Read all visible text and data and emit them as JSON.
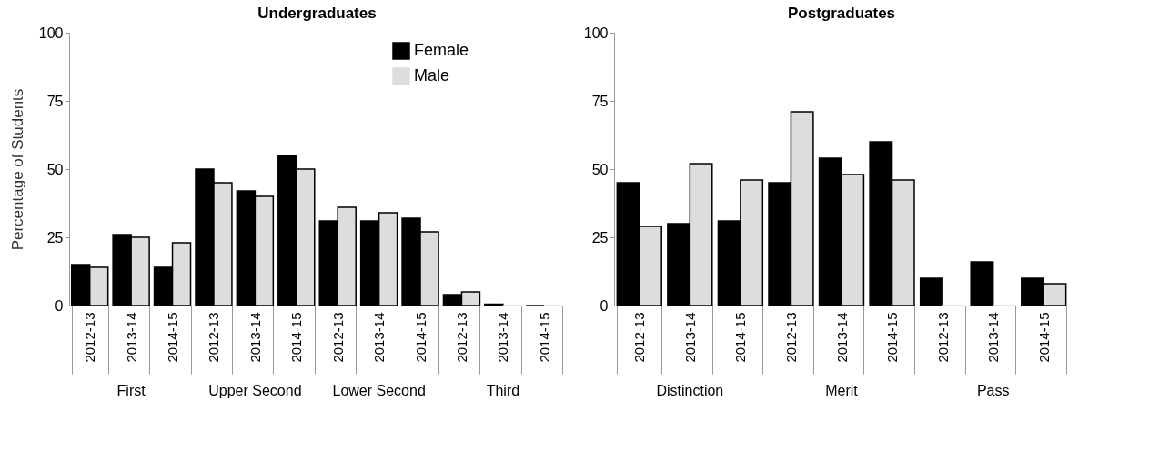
{
  "chart_data": [
    {
      "type": "bar",
      "title": "Undergraduates",
      "ylabel": "Percentage of Students",
      "categories": [
        "2012-13",
        "2013-14",
        "2014-15",
        "2012-13",
        "2013-14",
        "2014-15",
        "2012-13",
        "2013-14",
        "2014-15",
        "2012-13",
        "2013-14",
        "2014-15"
      ],
      "annotations": [
        "First",
        "Upper Second",
        "Lower Second",
        "Third"
      ],
      "series": [
        {
          "name": "Female",
          "color": "#000000",
          "values": [
            15,
            26,
            14,
            50,
            42,
            55,
            31,
            31,
            32,
            4,
            0.5,
            0
          ]
        },
        {
          "name": "Male",
          "color": "#dddddd",
          "values": [
            14,
            25,
            23,
            45,
            40,
            50,
            36,
            34,
            27,
            5,
            0,
            0
          ]
        }
      ],
      "ylim": [
        0,
        100
      ],
      "yticks": [
        0,
        25,
        50,
        75,
        100
      ],
      "grid": false,
      "legend": "top right"
    },
    {
      "type": "bar",
      "title": "Postgraduates",
      "categories": [
        "2012-13",
        "2013-14",
        "2014-15",
        "2012-13",
        "2013-14",
        "2014-15",
        "2012-13",
        "2013-14",
        "2014-15"
      ],
      "annotations": [
        "Distinction",
        "Merit",
        "Pass"
      ],
      "series": [
        {
          "color": "#000000",
          "values": [
            45,
            30,
            31,
            45,
            54,
            60,
            10,
            16,
            10
          ]
        },
        {
          "color": "#dddddd",
          "values": [
            29,
            52,
            46,
            71,
            48,
            46,
            0,
            0,
            8
          ]
        }
      ],
      "ylim": [
        0,
        100
      ],
      "yticks": [
        0,
        25,
        50,
        75,
        100
      ],
      "grid": false
    }
  ]
}
